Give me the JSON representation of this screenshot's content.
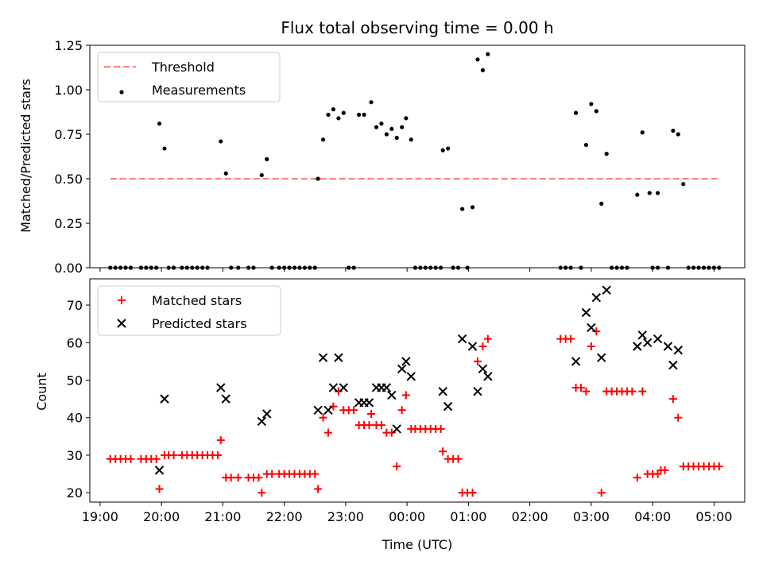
{
  "chart_data": [
    {
      "type": "scatter",
      "title": "Flux total observing time = 0.00 h",
      "xlabel": "",
      "ylabel": "Matched/Predicted stars",
      "ylim": [
        0,
        1.25
      ],
      "yticks": [
        "0.00",
        "0.25",
        "0.50",
        "0.75",
        "1.00",
        "1.25"
      ],
      "xrange": [
        "18:50",
        "05:30"
      ],
      "legend": {
        "placement": "top-left",
        "entries": [
          "Threshold",
          "Measurements"
        ]
      },
      "series": [
        {
          "name": "Threshold",
          "kind": "dashed-line",
          "color": "#ff7f7f",
          "points": [
            [
              "19:10",
              0.5
            ],
            [
              "05:05",
              0.5
            ]
          ]
        },
        {
          "name": "Measurements",
          "kind": "dot",
          "color": "#000000",
          "points": [
            [
              "19:10",
              0
            ],
            [
              "19:15",
              0
            ],
            [
              "19:20",
              0
            ],
            [
              "19:25",
              0
            ],
            [
              "19:30",
              0
            ],
            [
              "19:40",
              0
            ],
            [
              "19:45",
              0
            ],
            [
              "19:50",
              0
            ],
            [
              "19:55",
              0
            ],
            [
              "19:58",
              0.81
            ],
            [
              "20:03",
              0.67
            ],
            [
              "20:07",
              0
            ],
            [
              "20:12",
              0
            ],
            [
              "20:20",
              0
            ],
            [
              "20:25",
              0
            ],
            [
              "20:30",
              0
            ],
            [
              "20:35",
              0
            ],
            [
              "20:40",
              0
            ],
            [
              "20:45",
              0
            ],
            [
              "20:58",
              0.71
            ],
            [
              "21:03",
              0.53
            ],
            [
              "21:08",
              0
            ],
            [
              "21:15",
              0
            ],
            [
              "21:25",
              0
            ],
            [
              "21:30",
              0
            ],
            [
              "21:38",
              0.52
            ],
            [
              "21:43",
              0.61
            ],
            [
              "21:48",
              0
            ],
            [
              "21:55",
              0
            ],
            [
              "22:00",
              0
            ],
            [
              "22:05",
              0
            ],
            [
              "22:10",
              0
            ],
            [
              "22:15",
              0
            ],
            [
              "22:20",
              0
            ],
            [
              "22:25",
              0
            ],
            [
              "22:30",
              0
            ],
            [
              "22:33",
              0.5
            ],
            [
              "22:38",
              0.72
            ],
            [
              "22:43",
              0.86
            ],
            [
              "22:48",
              0.89
            ],
            [
              "22:53",
              0.84
            ],
            [
              "22:58",
              0.87
            ],
            [
              "23:03",
              0
            ],
            [
              "23:08",
              0
            ],
            [
              "23:13",
              0.86
            ],
            [
              "23:18",
              0.86
            ],
            [
              "23:25",
              0.93
            ],
            [
              "23:30",
              0.79
            ],
            [
              "23:35",
              0.81
            ],
            [
              "23:40",
              0.75
            ],
            [
              "23:45",
              0.78
            ],
            [
              "23:50",
              0.73
            ],
            [
              "23:55",
              0.79
            ],
            [
              "23:59",
              0.84
            ],
            [
              "00:04",
              0.72
            ],
            [
              "00:08",
              0
            ],
            [
              "00:13",
              0
            ],
            [
              "00:18",
              0
            ],
            [
              "00:23",
              0
            ],
            [
              "00:28",
              0
            ],
            [
              "00:33",
              0
            ],
            [
              "00:35",
              0.66
            ],
            [
              "00:40",
              0.67
            ],
            [
              "00:45",
              0
            ],
            [
              "00:50",
              0
            ],
            [
              "00:54",
              0.33
            ],
            [
              "00:59",
              0
            ],
            [
              "01:04",
              0.34
            ],
            [
              "01:09",
              1.17
            ],
            [
              "01:14",
              1.11
            ],
            [
              "01:19",
              1.2
            ],
            [
              "02:30",
              0
            ],
            [
              "02:35",
              0
            ],
            [
              "02:40",
              0
            ],
            [
              "02:45",
              0.87
            ],
            [
              "02:50",
              0
            ],
            [
              "02:55",
              0.69
            ],
            [
              "03:00",
              0.92
            ],
            [
              "03:05",
              0.88
            ],
            [
              "03:10",
              0.36
            ],
            [
              "03:15",
              0.64
            ],
            [
              "03:20",
              0
            ],
            [
              "03:25",
              0
            ],
            [
              "03:30",
              0
            ],
            [
              "03:35",
              0
            ],
            [
              "03:45",
              0.41
            ],
            [
              "03:50",
              0.76
            ],
            [
              "03:57",
              0.42
            ],
            [
              "04:00",
              0
            ],
            [
              "04:05",
              0
            ],
            [
              "04:05",
              0.42
            ],
            [
              "04:15",
              0
            ],
            [
              "04:20",
              0.77
            ],
            [
              "04:25",
              0.75
            ],
            [
              "04:30",
              0.47
            ],
            [
              "04:35",
              0
            ],
            [
              "04:40",
              0
            ],
            [
              "04:45",
              0
            ],
            [
              "04:50",
              0
            ],
            [
              "04:55",
              0
            ],
            [
              "05:00",
              0
            ],
            [
              "05:05",
              0
            ]
          ]
        }
      ]
    },
    {
      "type": "scatter",
      "title": "",
      "xlabel": "Time (UTC)",
      "ylabel": "Count",
      "ylim": [
        17.5,
        77
      ],
      "yticks": [
        "20",
        "30",
        "40",
        "50",
        "60",
        "70"
      ],
      "xticks": [
        "19:00",
        "20:00",
        "21:00",
        "22:00",
        "23:00",
        "00:00",
        "01:00",
        "02:00",
        "03:00",
        "04:00",
        "05:00"
      ],
      "xrange": [
        "18:50",
        "05:30"
      ],
      "legend": {
        "placement": "top-left",
        "entries": [
          "Matched stars",
          "Predicted stars"
        ]
      },
      "series": [
        {
          "name": "Matched stars",
          "kind": "plus",
          "color": "#ff0000",
          "points": [
            [
              "19:10",
              29
            ],
            [
              "19:15",
              29
            ],
            [
              "19:20",
              29
            ],
            [
              "19:25",
              29
            ],
            [
              "19:30",
              29
            ],
            [
              "19:40",
              29
            ],
            [
              "19:45",
              29
            ],
            [
              "19:50",
              29
            ],
            [
              "19:55",
              29
            ],
            [
              "19:58",
              21
            ],
            [
              "20:03",
              30
            ],
            [
              "20:07",
              30
            ],
            [
              "20:12",
              30
            ],
            [
              "20:20",
              30
            ],
            [
              "20:25",
              30
            ],
            [
              "20:30",
              30
            ],
            [
              "20:35",
              30
            ],
            [
              "20:40",
              30
            ],
            [
              "20:45",
              30
            ],
            [
              "20:50",
              30
            ],
            [
              "20:55",
              30
            ],
            [
              "20:58",
              34
            ],
            [
              "21:03",
              24
            ],
            [
              "21:08",
              24
            ],
            [
              "21:15",
              24
            ],
            [
              "21:25",
              24
            ],
            [
              "21:30",
              24
            ],
            [
              "21:35",
              24
            ],
            [
              "21:38",
              20
            ],
            [
              "21:43",
              25
            ],
            [
              "21:48",
              25
            ],
            [
              "21:55",
              25
            ],
            [
              "22:00",
              25
            ],
            [
              "22:05",
              25
            ],
            [
              "22:10",
              25
            ],
            [
              "22:15",
              25
            ],
            [
              "22:20",
              25
            ],
            [
              "22:25",
              25
            ],
            [
              "22:30",
              25
            ],
            [
              "22:33",
              21
            ],
            [
              "22:38",
              40
            ],
            [
              "22:43",
              36
            ],
            [
              "22:48",
              43
            ],
            [
              "22:53",
              47
            ],
            [
              "22:58",
              42
            ],
            [
              "23:03",
              42
            ],
            [
              "23:08",
              42
            ],
            [
              "23:13",
              38
            ],
            [
              "23:18",
              38
            ],
            [
              "23:23",
              38
            ],
            [
              "23:25",
              41
            ],
            [
              "23:30",
              38
            ],
            [
              "23:35",
              38
            ],
            [
              "23:40",
              36
            ],
            [
              "23:45",
              36
            ],
            [
              "23:50",
              27
            ],
            [
              "23:55",
              42
            ],
            [
              "23:59",
              46
            ],
            [
              "00:04",
              37
            ],
            [
              "00:08",
              37
            ],
            [
              "00:13",
              37
            ],
            [
              "00:18",
              37
            ],
            [
              "00:23",
              37
            ],
            [
              "00:28",
              37
            ],
            [
              "00:33",
              37
            ],
            [
              "00:35",
              31
            ],
            [
              "00:40",
              29
            ],
            [
              "00:45",
              29
            ],
            [
              "00:50",
              29
            ],
            [
              "00:54",
              20
            ],
            [
              "00:59",
              20
            ],
            [
              "01:04",
              20
            ],
            [
              "01:09",
              55
            ],
            [
              "01:14",
              59
            ],
            [
              "01:19",
              61
            ],
            [
              "02:30",
              61
            ],
            [
              "02:35",
              61
            ],
            [
              "02:40",
              61
            ],
            [
              "02:45",
              48
            ],
            [
              "02:50",
              48
            ],
            [
              "02:55",
              47
            ],
            [
              "03:00",
              59
            ],
            [
              "03:05",
              63
            ],
            [
              "03:10",
              20
            ],
            [
              "03:15",
              47
            ],
            [
              "03:20",
              47
            ],
            [
              "03:25",
              47
            ],
            [
              "03:30",
              47
            ],
            [
              "03:35",
              47
            ],
            [
              "03:40",
              47
            ],
            [
              "03:45",
              24
            ],
            [
              "03:50",
              47
            ],
            [
              "03:55",
              25
            ],
            [
              "04:00",
              25
            ],
            [
              "04:05",
              25
            ],
            [
              "04:08",
              26
            ],
            [
              "04:12",
              26
            ],
            [
              "04:20",
              45
            ],
            [
              "04:25",
              40
            ],
            [
              "04:30",
              27
            ],
            [
              "04:35",
              27
            ],
            [
              "04:40",
              27
            ],
            [
              "04:45",
              27
            ],
            [
              "04:50",
              27
            ],
            [
              "04:55",
              27
            ],
            [
              "05:00",
              27
            ],
            [
              "05:05",
              27
            ]
          ]
        },
        {
          "name": "Predicted stars",
          "kind": "x",
          "color": "#000000",
          "points": [
            [
              "19:58",
              26
            ],
            [
              "20:03",
              45
            ],
            [
              "20:58",
              48
            ],
            [
              "21:03",
              45
            ],
            [
              "21:38",
              39
            ],
            [
              "21:43",
              41
            ],
            [
              "22:33",
              42
            ],
            [
              "22:38",
              56
            ],
            [
              "22:43",
              42
            ],
            [
              "22:48",
              48
            ],
            [
              "22:53",
              56
            ],
            [
              "22:58",
              48
            ],
            [
              "23:13",
              44
            ],
            [
              "23:18",
              44
            ],
            [
              "23:23",
              44
            ],
            [
              "23:30",
              48
            ],
            [
              "23:35",
              48
            ],
            [
              "23:40",
              48
            ],
            [
              "23:45",
              46
            ],
            [
              "23:50",
              37
            ],
            [
              "23:55",
              53
            ],
            [
              "23:59",
              55
            ],
            [
              "00:04",
              51
            ],
            [
              "00:35",
              47
            ],
            [
              "00:40",
              43
            ],
            [
              "00:54",
              61
            ],
            [
              "01:04",
              59
            ],
            [
              "01:09",
              47
            ],
            [
              "01:14",
              53
            ],
            [
              "01:19",
              51
            ],
            [
              "02:45",
              55
            ],
            [
              "02:55",
              68
            ],
            [
              "03:00",
              64
            ],
            [
              "03:05",
              72
            ],
            [
              "03:10",
              56
            ],
            [
              "03:15",
              74
            ],
            [
              "03:45",
              59
            ],
            [
              "03:50",
              62
            ],
            [
              "03:55",
              60
            ],
            [
              "04:05",
              61
            ],
            [
              "04:15",
              59
            ],
            [
              "04:20",
              54
            ],
            [
              "04:25",
              58
            ]
          ]
        }
      ]
    }
  ]
}
